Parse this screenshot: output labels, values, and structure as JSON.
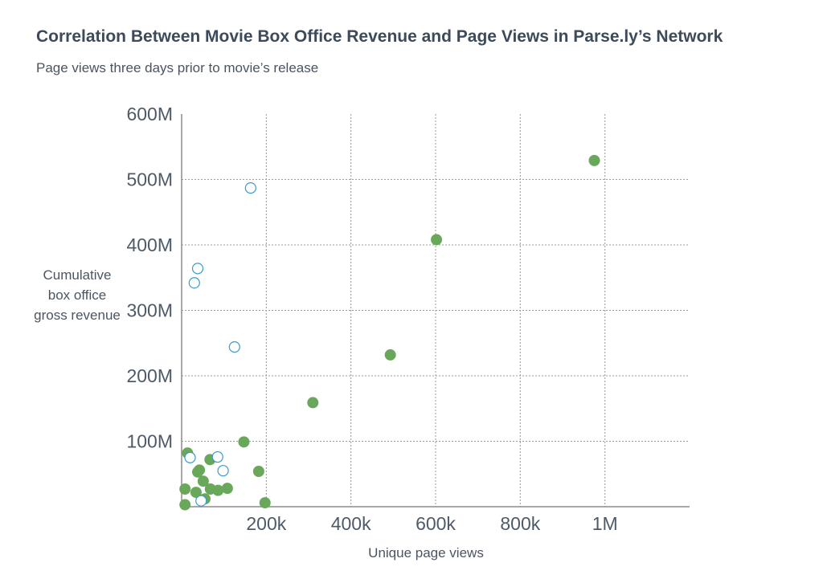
{
  "chart_data": {
    "type": "scatter",
    "title": "Correlation Between Movie Box Office Revenue and Page Views in Parse.ly’s Network",
    "subtitle": "Page views three days prior to movie’s release",
    "xlabel": "Unique page views",
    "ylabel": "Cumulative box office gross revenue",
    "xlim": [
      0,
      1200000
    ],
    "ylim": [
      0,
      600000000
    ],
    "x_ticks": [
      {
        "value": 200000,
        "label": "200k"
      },
      {
        "value": 400000,
        "label": "400k"
      },
      {
        "value": 600000,
        "label": "600k"
      },
      {
        "value": 800000,
        "label": "800k"
      },
      {
        "value": 1000000,
        "label": "1M"
      }
    ],
    "y_ticks": [
      {
        "value": 100000000,
        "label": "100M"
      },
      {
        "value": 200000000,
        "label": "200M"
      },
      {
        "value": 300000000,
        "label": "300M"
      },
      {
        "value": 400000000,
        "label": "400M"
      },
      {
        "value": 500000000,
        "label": "500M"
      },
      {
        "value": 600000000,
        "label": "600M"
      }
    ],
    "grid": true,
    "series": [
      {
        "style": "filled",
        "color": "#69a85a",
        "points": [
          [
            975000,
            529000000
          ],
          [
            602000,
            408000000
          ],
          [
            493000,
            232000000
          ],
          [
            310000,
            159000000
          ],
          [
            147000,
            99000000
          ],
          [
            182000,
            54000000
          ],
          [
            197000,
            6000000
          ],
          [
            108000,
            28000000
          ],
          [
            86000,
            25000000
          ],
          [
            68000,
            27000000
          ],
          [
            67000,
            72000000
          ],
          [
            51000,
            39000000
          ],
          [
            55000,
            12000000
          ],
          [
            42000,
            56000000
          ],
          [
            38000,
            53000000
          ],
          [
            34000,
            22000000
          ],
          [
            14000,
            82000000
          ],
          [
            8000,
            27000000
          ],
          [
            8000,
            3000000
          ]
        ]
      },
      {
        "style": "hollow",
        "color": "#3b9ac7",
        "points": [
          [
            163000,
            487000000
          ],
          [
            38000,
            364000000
          ],
          [
            30000,
            342000000
          ],
          [
            125000,
            244000000
          ],
          [
            85000,
            76000000
          ],
          [
            20000,
            75000000
          ],
          [
            98000,
            55000000
          ],
          [
            46000,
            9000000
          ]
        ]
      }
    ]
  }
}
